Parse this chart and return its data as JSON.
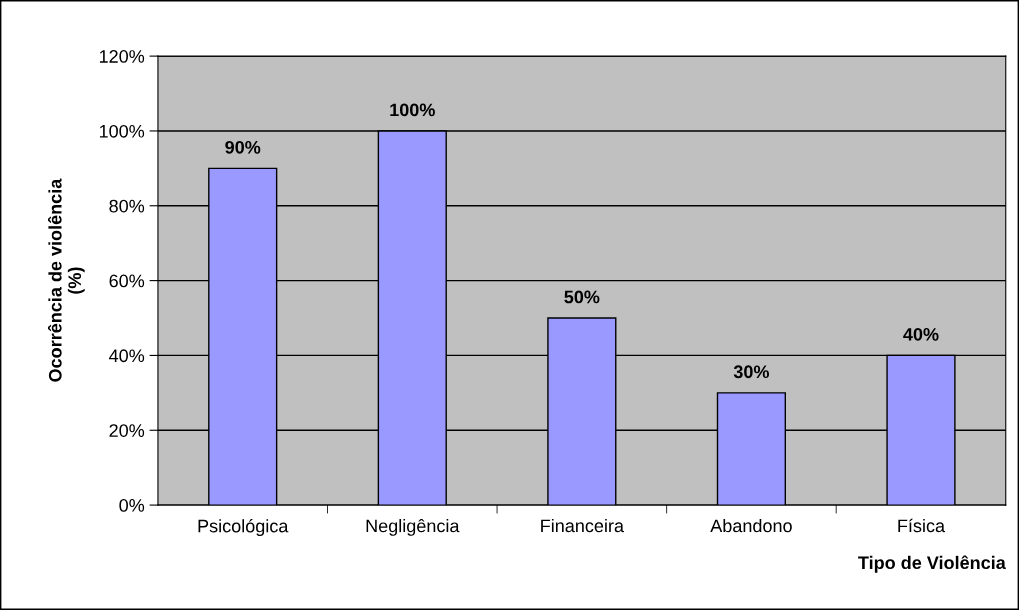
{
  "chart_data": {
    "type": "bar",
    "xlabel": "Tipo de Violência",
    "ylabel": "Ocorrência de violência\n(%)",
    "categories": [
      "Psicológica",
      "Negligência",
      "Financeira",
      "Abandono",
      "Física"
    ],
    "values": [
      90,
      100,
      50,
      30,
      40
    ],
    "color": "#9999ff",
    "value_labels": [
      "90%",
      "100%",
      "50%",
      "30%",
      "40%"
    ],
    "ylim": [
      0,
      120
    ],
    "yticks": [
      {
        "value": 0,
        "label": "0%"
      },
      {
        "value": 20,
        "label": "20%"
      },
      {
        "value": 40,
        "label": "40%"
      },
      {
        "value": 60,
        "label": "60%"
      },
      {
        "value": 80,
        "label": "80%"
      },
      {
        "value": 100,
        "label": "100%"
      },
      {
        "value": 120,
        "label": "120%"
      }
    ],
    "grid": "y",
    "legend": false
  }
}
